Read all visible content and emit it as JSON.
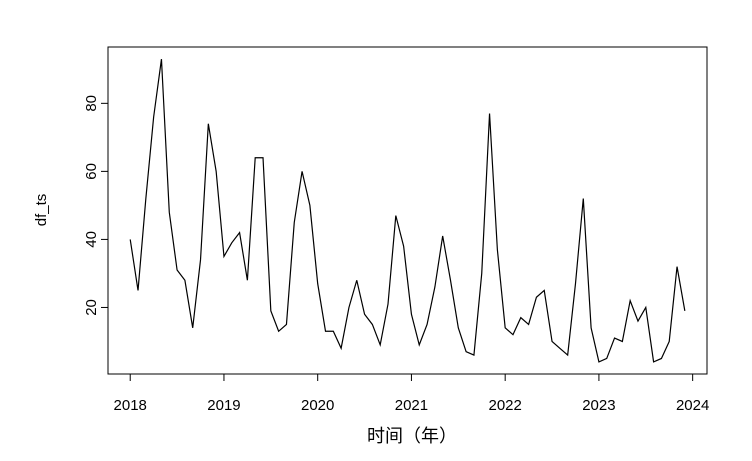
{
  "chart_data": {
    "type": "line",
    "x_label": "时间（年）",
    "y_label": "df_ts",
    "x": [
      2018,
      2018.0833,
      2018.1667,
      2018.25,
      2018.3333,
      2018.4167,
      2018.5,
      2018.5833,
      2018.6667,
      2018.75,
      2018.8333,
      2018.9167,
      2019,
      2019.0833,
      2019.1667,
      2019.25,
      2019.3333,
      2019.4167,
      2019.5,
      2019.5833,
      2019.6667,
      2019.75,
      2019.8333,
      2019.9167,
      2020,
      2020.0833,
      2020.1667,
      2020.25,
      2020.3333,
      2020.4167,
      2020.5,
      2020.5833,
      2020.6667,
      2020.75,
      2020.8333,
      2020.9167,
      2021,
      2021.0833,
      2021.1667,
      2021.25,
      2021.3333,
      2021.4167,
      2021.5,
      2021.5833,
      2021.6667,
      2021.75,
      2021.8333,
      2021.9167,
      2022,
      2022.0833,
      2022.1667,
      2022.25,
      2022.3333,
      2022.4167,
      2022.5,
      2022.5833,
      2022.6667,
      2022.75,
      2022.8333,
      2022.9167,
      2023,
      2023.0833,
      2023.1667,
      2023.25,
      2023.3333,
      2023.4167,
      2023.5,
      2023.5833,
      2023.6667,
      2023.75,
      2023.8333,
      2023.9167
    ],
    "series": [
      {
        "name": "df_ts",
        "color": "#000000",
        "values": [
          40,
          25,
          52,
          76,
          93,
          48,
          31,
          28,
          14,
          34,
          74,
          60,
          35,
          39,
          42,
          28,
          64,
          64,
          19,
          13,
          15,
          45,
          60,
          50,
          27,
          13,
          13,
          8,
          20,
          28,
          18,
          15,
          9,
          21,
          47,
          38,
          18,
          9,
          15,
          26,
          41,
          28,
          14,
          7,
          6,
          30,
          77,
          37,
          14,
          12,
          17,
          15,
          23,
          25,
          10,
          8,
          6,
          27,
          52,
          14,
          4,
          5,
          11,
          10,
          22,
          16,
          20,
          4,
          5,
          10,
          32,
          19
        ]
      }
    ],
    "xlim": [
      2017.763,
      2024.153
    ],
    "xticks": [
      2018,
      2019,
      2020,
      2021,
      2022,
      2023,
      2024
    ],
    "ylim": [
      0.44,
      96.56
    ],
    "yticks": [
      20,
      40,
      60,
      80
    ],
    "grid": false
  }
}
